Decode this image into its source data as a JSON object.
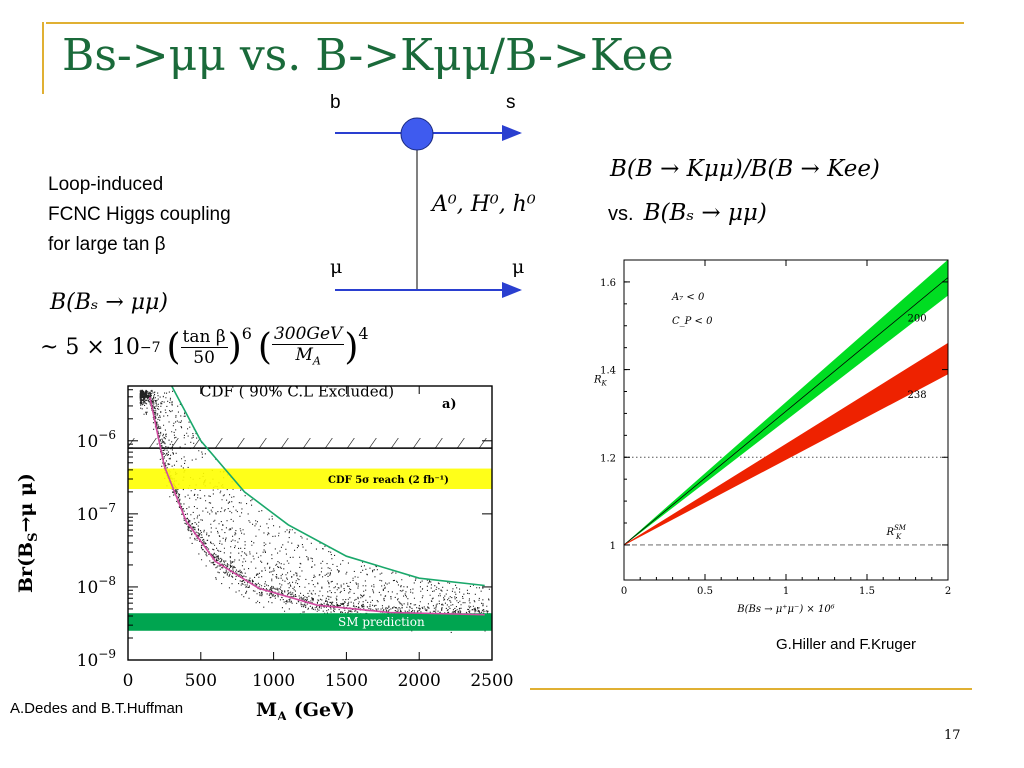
{
  "slide": {
    "title": "Bs->μμ vs. B->Kμμ/B->Kee",
    "page_number": "17"
  },
  "feynman": {
    "quark_in": "b",
    "quark_out": "s",
    "lepton_left": "μ",
    "lepton_right": "μ",
    "mediators": "A⁰, H⁰, h⁰",
    "vertex_color": "#3f5bef",
    "line_color": "#2a3fd0"
  },
  "description": {
    "line1": "Loop-induced",
    "line2": "FCNC Higgs coupling",
    "line3": "for large tan β"
  },
  "formula": {
    "line1": "B(Bₛ → μμ)",
    "prefix": "~ 5 × 10",
    "exponent": "−7",
    "f1_num": "tan β",
    "f1_den": "50",
    "f1_pow": "6",
    "f2_num": "300GeV",
    "f2_den": "M",
    "f2_den_sub": "A",
    "f2_pow": "4"
  },
  "ratio_label": {
    "line1": "B(B → Kμμ)/B(B → Kee)",
    "vs": "vs.",
    "line2": "B(Bₛ → μμ)"
  },
  "credits": {
    "left": "A.Dedes and B.T.Huffman",
    "right": "G.Hiller and F.Kruger"
  },
  "chart_data": [
    {
      "type": "scatter",
      "panel_label": "a)",
      "xlabel": "M",
      "xlabel_sub": "A",
      "xlabel_unit": "(GeV)",
      "ylabel": "Br(B",
      "ylabel_sub": "S",
      "ylabel_tail": "→μ μ)",
      "xlim": [
        0,
        2500
      ],
      "ylim_log10": [
        -9,
        -5.25
      ],
      "log_y": true,
      "x_ticks": [
        "0",
        "500",
        "1000",
        "1500",
        "2000",
        "2500"
      ],
      "y_ticks": [
        {
          "base": "10",
          "exp": "−6",
          "log": -6
        },
        {
          "base": "10",
          "exp": "−7",
          "log": -7
        },
        {
          "base": "10",
          "exp": "−8",
          "log": -8
        },
        {
          "base": "10",
          "exp": "−9",
          "log": -9
        }
      ],
      "bands": [
        {
          "name": "CDF ( 90% C.L Excluded)",
          "from_log": -6.1,
          "to_log": -5.25,
          "style": "hatched",
          "color": "#000000"
        },
        {
          "name": "CDF 5σ reach (2 fb⁻¹)",
          "from_log": -6.66,
          "to_log": -6.38,
          "style": "filled",
          "color": "#ffff00"
        },
        {
          "name": "SM prediction",
          "from_log": -8.6,
          "to_log": -8.36,
          "style": "filled",
          "color": "#00a550"
        }
      ],
      "curves": [
        {
          "name": "upper envelope",
          "color": "#1aa86b",
          "points": [
            [
              300,
              -5.25
            ],
            [
              500,
              -6.0
            ],
            [
              800,
              -6.7
            ],
            [
              1100,
              -7.15
            ],
            [
              1500,
              -7.58
            ],
            [
              2000,
              -7.88
            ],
            [
              2450,
              -7.98
            ]
          ]
        },
        {
          "name": "fit",
          "color": "#d04aa0",
          "points": [
            [
              150,
              -5.4
            ],
            [
              250,
              -6.35
            ],
            [
              400,
              -7.1
            ],
            [
              600,
              -7.65
            ],
            [
              900,
              -8.02
            ],
            [
              1300,
              -8.25
            ],
            [
              1800,
              -8.35
            ],
            [
              2450,
              -8.38
            ]
          ]
        }
      ],
      "scatter_region": "dense points between the fit curve and the upper envelope, clustering near M_A 100–800 GeV"
    },
    {
      "type": "area",
      "xlabel": "B(Bs → μ⁺μ⁻) × 10⁶",
      "ylabel": "R",
      "ylabel_sub": "K",
      "xlim": [
        0,
        2
      ],
      "ylim": [
        0.92,
        1.65
      ],
      "x_ticks": [
        "0",
        "0.5",
        "1",
        "1.5",
        "2"
      ],
      "y_ticks": [
        "1",
        "1.2",
        "1.4",
        "1.6"
      ],
      "reference_lines": [
        {
          "y": 1.2,
          "style": "dotted"
        },
        {
          "y": 1.0,
          "style": "dashed",
          "label": "R",
          "label_sub": "K",
          "label_sup": "SM"
        }
      ],
      "annotations": [
        "A₇ < 0",
        "C_P < 0"
      ],
      "series": [
        {
          "name": "200",
          "color": "#00dd22",
          "x": [
            0,
            2
          ],
          "lower": [
            1.0,
            1.57
          ],
          "upper": [
            1.0,
            1.65
          ],
          "center": [
            1.0,
            1.61
          ]
        },
        {
          "name": "238",
          "color": "#ee2200",
          "x": [
            0,
            2
          ],
          "lower": [
            1.0,
            1.39
          ],
          "upper": [
            1.0,
            1.46
          ]
        }
      ]
    }
  ]
}
